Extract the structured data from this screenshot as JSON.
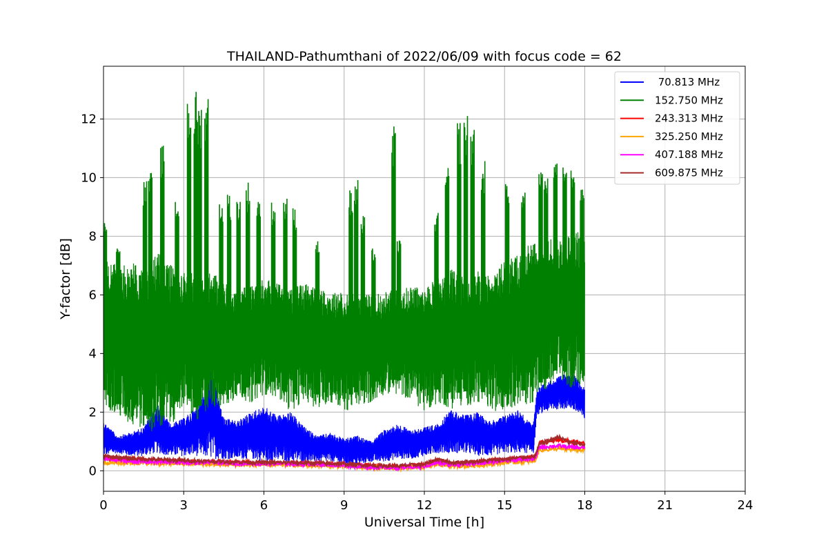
{
  "chart_data": {
    "type": "line",
    "title": "THAILAND-Pathumthani of 2022/06/09 with focus code = 62",
    "xlabel": "Universal Time [h]",
    "ylabel": "Y-factor [dB]",
    "xlim": [
      0,
      24
    ],
    "ylim": [
      -0.7,
      13.8
    ],
    "xticks": [
      0,
      3,
      6,
      9,
      12,
      15,
      18,
      21,
      24
    ],
    "yticks": [
      0,
      2,
      4,
      6,
      8,
      10,
      12
    ],
    "grid": true,
    "legend_position": "top-right",
    "series": [
      {
        "name": " 70.813 MHz",
        "color": "#0000ff",
        "x": [
          0,
          0.5,
          1,
          1.5,
          2,
          2.5,
          3,
          3.5,
          4,
          4.5,
          5,
          5.5,
          6,
          6.5,
          7,
          7.5,
          8,
          8.5,
          9,
          9.5,
          10,
          10.5,
          11,
          11.5,
          12,
          12.5,
          13,
          13.5,
          14,
          14.5,
          15,
          15.5,
          16,
          16.1,
          16.2,
          16.5,
          17,
          17.5,
          18
        ],
        "y_low": [
          0.5,
          0.6,
          0.5,
          0.5,
          0.6,
          0.5,
          0.5,
          0.5,
          0.4,
          0.4,
          0.4,
          0.4,
          0.3,
          0.3,
          0.3,
          0.3,
          0.3,
          0.3,
          0.2,
          0.2,
          0.3,
          0.3,
          0.4,
          0.4,
          0.5,
          0.6,
          0.6,
          0.6,
          0.5,
          0.5,
          0.6,
          0.6,
          0.6,
          0.6,
          1.9,
          2.0,
          2.1,
          2.1,
          1.7
        ],
        "y_high": [
          1.7,
          1.2,
          1.3,
          1.5,
          2.3,
          1.6,
          1.8,
          2.2,
          3.5,
          1.8,
          1.7,
          2.0,
          2.2,
          1.9,
          2.0,
          1.5,
          1.2,
          1.3,
          1.1,
          1.2,
          1.0,
          1.4,
          1.6,
          1.4,
          1.5,
          1.6,
          2.1,
          1.9,
          2.0,
          1.7,
          1.9,
          2.1,
          1.6,
          1.8,
          2.8,
          3.0,
          3.2,
          3.4,
          2.8
        ]
      },
      {
        "name": "152.750 MHz",
        "color": "#008000",
        "x": [
          0,
          0.5,
          1,
          1.5,
          2,
          2.5,
          3,
          3.5,
          4,
          4.5,
          5,
          5.5,
          6,
          6.5,
          7,
          7.5,
          8,
          8.5,
          9,
          9.5,
          10,
          10.5,
          11,
          11.5,
          12,
          12.5,
          13,
          13.5,
          14,
          14.5,
          15,
          15.5,
          16,
          16.5,
          17,
          17.5,
          18
        ],
        "y_low": [
          2.3,
          1.8,
          1.5,
          1.4,
          1.3,
          1.5,
          2.2,
          1.6,
          2.2,
          2.1,
          2.5,
          2.3,
          2.6,
          2.5,
          2.0,
          2.4,
          2.1,
          2.3,
          2.0,
          2.2,
          2.3,
          2.6,
          2.6,
          2.4,
          2.0,
          2.3,
          2.1,
          2.2,
          2.3,
          2.0,
          2.1,
          2.2,
          2.3,
          2.6,
          3.0,
          2.8,
          3.0
        ],
        "y_high": [
          7.4,
          7.0,
          7.1,
          7.0,
          7.5,
          7.1,
          6.8,
          6.8,
          6.9,
          6.4,
          6.2,
          6.3,
          6.6,
          6.4,
          6.3,
          6.4,
          6.2,
          6.1,
          6.1,
          6.0,
          6.0,
          6.1,
          6.2,
          6.3,
          6.2,
          6.6,
          6.9,
          6.6,
          6.8,
          6.6,
          7.2,
          7.4,
          7.8,
          7.9,
          7.9,
          8.1,
          8.2
        ],
        "spikes": [
          [
            0.05,
            8.5
          ],
          [
            0.55,
            7.6
          ],
          [
            1.55,
            9.9
          ],
          [
            1.75,
            10.2
          ],
          [
            2.2,
            11.1
          ],
          [
            2.75,
            9.2
          ],
          [
            3.2,
            12.9
          ],
          [
            3.45,
            13.0
          ],
          [
            3.6,
            12.6
          ],
          [
            3.85,
            13.1
          ],
          [
            4.4,
            9.3
          ],
          [
            4.7,
            9.5
          ],
          [
            5.05,
            9.4
          ],
          [
            5.4,
            9.9
          ],
          [
            5.8,
            9.4
          ],
          [
            6.35,
            9.2
          ],
          [
            6.8,
            9.4
          ],
          [
            7.15,
            9.0
          ],
          [
            8.0,
            7.9
          ],
          [
            9.25,
            9.6
          ],
          [
            9.45,
            10.0
          ],
          [
            9.7,
            8.7
          ],
          [
            10.1,
            7.6
          ],
          [
            10.85,
            11.8
          ],
          [
            11.05,
            7.9
          ],
          [
            12.45,
            8.8
          ],
          [
            12.85,
            10.4
          ],
          [
            13.3,
            12.0
          ],
          [
            13.55,
            12.2
          ],
          [
            13.8,
            11.9
          ],
          [
            14.2,
            10.6
          ],
          [
            15.1,
            9.9
          ],
          [
            15.7,
            9.5
          ],
          [
            16.35,
            10.4
          ],
          [
            16.55,
            10.0
          ],
          [
            16.9,
            10.5
          ],
          [
            17.25,
            10.5
          ],
          [
            17.55,
            10.3
          ],
          [
            17.9,
            9.6
          ]
        ]
      },
      {
        "name": "243.313 MHz",
        "color": "#ff0000",
        "x": [
          0,
          1,
          2,
          3,
          4,
          5,
          6,
          7,
          8,
          9,
          10,
          11,
          12,
          12.5,
          13,
          14,
          15,
          16,
          16.15,
          16.3,
          17,
          17.5,
          18
        ],
        "y": [
          0.45,
          0.4,
          0.35,
          0.32,
          0.3,
          0.28,
          0.27,
          0.26,
          0.25,
          0.22,
          0.18,
          0.15,
          0.2,
          0.35,
          0.25,
          0.3,
          0.38,
          0.45,
          0.5,
          0.95,
          1.05,
          1.0,
          0.95
        ]
      },
      {
        "name": "325.250 MHz",
        "color": "#ffa500",
        "x": [
          0,
          1,
          2,
          3,
          4,
          5,
          6,
          7,
          8,
          9,
          10,
          11,
          12,
          12.5,
          13,
          14,
          15,
          16,
          16.15,
          16.3,
          17,
          17.5,
          18
        ],
        "y": [
          0.28,
          0.27,
          0.25,
          0.24,
          0.22,
          0.2,
          0.2,
          0.2,
          0.18,
          0.15,
          0.1,
          0.08,
          0.12,
          0.22,
          0.15,
          0.18,
          0.28,
          0.32,
          0.35,
          0.7,
          0.75,
          0.72,
          0.7
        ]
      },
      {
        "name": "407.188 MHz",
        "color": "#ff00ff",
        "x": [
          0,
          1,
          2,
          3,
          4,
          5,
          6,
          7,
          8,
          9,
          10,
          11,
          12,
          12.5,
          13,
          14,
          15,
          16,
          16.15,
          16.3,
          17,
          17.5,
          18
        ],
        "y": [
          0.4,
          0.32,
          0.3,
          0.28,
          0.28,
          0.25,
          0.24,
          0.24,
          0.22,
          0.18,
          0.12,
          0.1,
          0.15,
          0.28,
          0.2,
          0.25,
          0.35,
          0.4,
          0.42,
          0.8,
          0.85,
          0.8,
          0.78
        ]
      },
      {
        "name": "609.875 MHz",
        "color": "#a52a2a",
        "x": [
          0,
          1,
          2,
          3,
          4,
          5,
          6,
          7,
          8,
          9,
          10,
          11,
          12,
          12.5,
          13,
          14,
          15,
          16,
          16.15,
          16.3,
          17,
          17.5,
          18
        ],
        "y": [
          0.5,
          0.42,
          0.38,
          0.35,
          0.32,
          0.3,
          0.28,
          0.28,
          0.26,
          0.23,
          0.18,
          0.16,
          0.22,
          0.4,
          0.28,
          0.32,
          0.4,
          0.48,
          0.5,
          0.9,
          1.15,
          0.95,
          0.9
        ]
      }
    ]
  }
}
